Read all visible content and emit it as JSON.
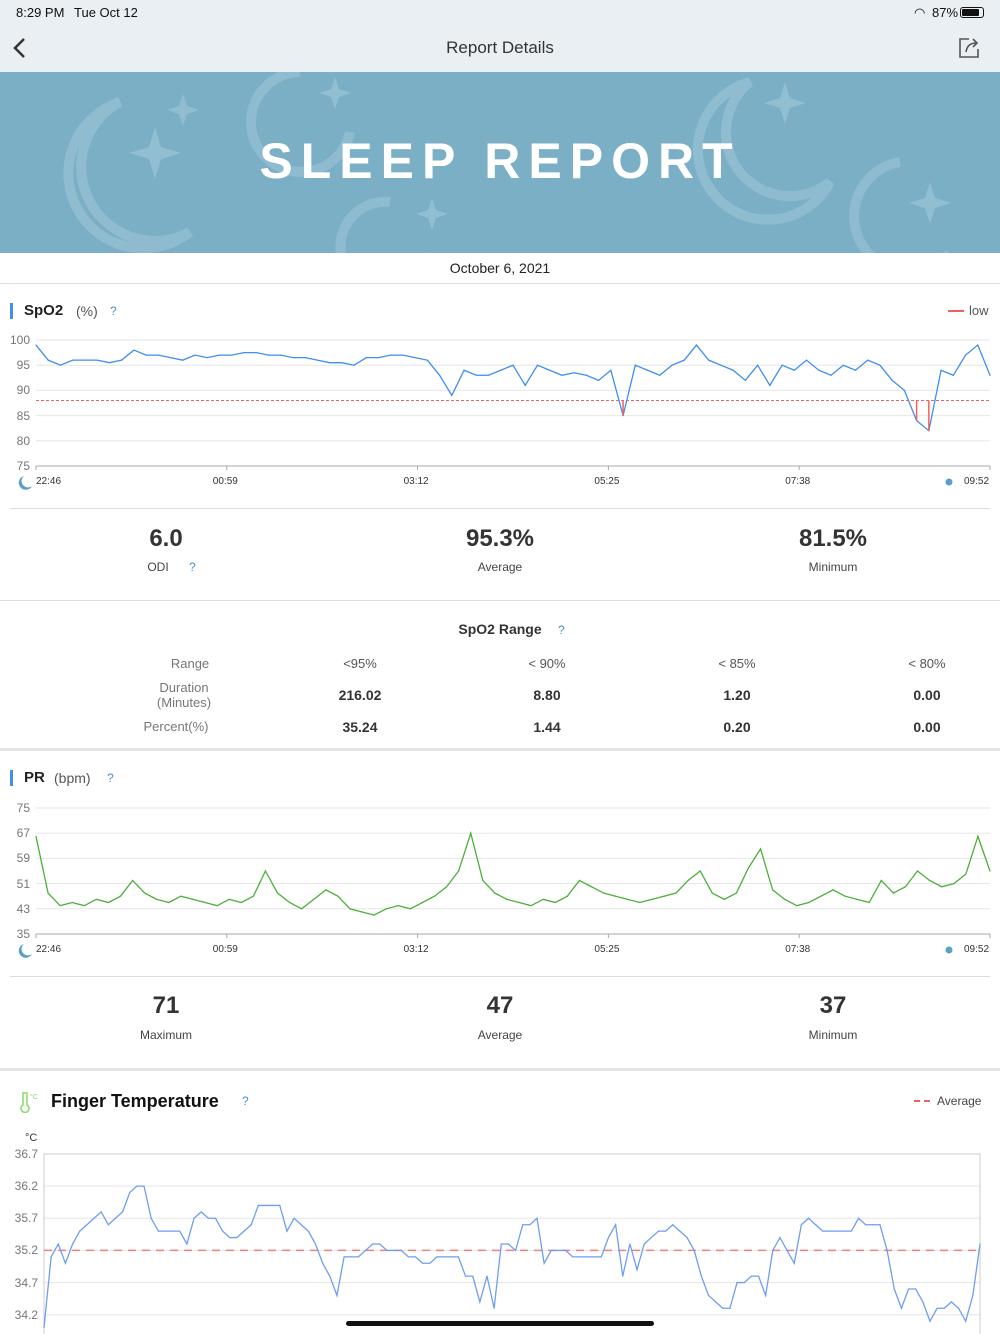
{
  "status_bar": {
    "time": "8:29 PM",
    "date": "Tue Oct 12",
    "battery": "87%"
  },
  "nav": {
    "title": "Report Details",
    "back_icon": "chevron-left-icon",
    "share_icon": "share-icon"
  },
  "banner": {
    "title": "SLEEP REPORT"
  },
  "report_date": "October 6, 2021",
  "spo2": {
    "title": "SpO2",
    "unit": "(%)",
    "help": "?",
    "legend": "low",
    "stats": [
      {
        "value": "6.0",
        "label": "ODI",
        "help": "?"
      },
      {
        "value": "95.3%",
        "label": "Average"
      },
      {
        "value": "81.5%",
        "label": "Minimum"
      }
    ]
  },
  "spo2_range": {
    "title": "SpO2 Range",
    "help": "?",
    "header": [
      "Range",
      "<95%",
      "< 90%",
      "< 85%",
      "< 80%"
    ],
    "rows": [
      {
        "label": "Duration\n(Minutes)",
        "values": [
          "216.02",
          "8.80",
          "1.20",
          "0.00"
        ]
      },
      {
        "label": "Percent(%)",
        "values": [
          "35.24",
          "1.44",
          "0.20",
          "0.00"
        ]
      }
    ]
  },
  "pr": {
    "title": "PR",
    "unit": "(bpm)",
    "help": "?",
    "stats": [
      {
        "value": "71",
        "label": "Maximum"
      },
      {
        "value": "47",
        "label": "Average"
      },
      {
        "value": "37",
        "label": "Minimum"
      }
    ]
  },
  "temp": {
    "title": "Finger Temperature",
    "help": "?",
    "legend": "Average",
    "unit": "°C"
  },
  "colors": {
    "spo2": "#3f8ef0",
    "low": "#f06060",
    "pr": "#4caf3a",
    "temp": "#6f9ef0",
    "avg": "#f08080"
  },
  "chart_data": [
    {
      "type": "line",
      "title": "SpO2 (%)",
      "x_ticks": [
        "22:46",
        "00:59",
        "03:12",
        "05:25",
        "07:38",
        "09:52"
      ],
      "y_ticks": [
        100,
        95,
        90,
        85,
        80,
        75
      ],
      "ylim": [
        75,
        100
      ],
      "low_threshold": 88,
      "values": [
        99,
        96,
        95,
        96,
        96,
        96,
        95.5,
        96,
        98,
        97,
        97,
        96.5,
        96,
        97,
        96.5,
        97,
        97,
        97.5,
        97.5,
        97,
        97,
        96.5,
        96.5,
        96,
        95.5,
        95.5,
        95,
        96.5,
        96.5,
        97,
        97,
        96.5,
        96,
        93,
        89,
        94,
        93,
        93,
        94,
        95,
        91,
        95,
        94,
        93,
        93.5,
        93,
        92,
        94,
        85,
        95,
        94,
        93,
        95,
        96,
        99,
        96,
        95,
        94,
        92,
        95,
        91,
        95,
        94,
        96,
        94,
        93,
        95,
        94,
        96,
        95,
        92,
        90,
        84,
        82,
        94,
        93,
        97,
        99,
        93
      ]
    },
    {
      "type": "line",
      "title": "PR (bpm)",
      "x_ticks": [
        "22:46",
        "00:59",
        "03:12",
        "05:25",
        "07:38",
        "09:52"
      ],
      "y_ticks": [
        75,
        67,
        59,
        51,
        43,
        35
      ],
      "ylim": [
        35,
        75
      ],
      "values": [
        66,
        48,
        44,
        45,
        44,
        46,
        45,
        47,
        52,
        48,
        46,
        45,
        47,
        46,
        45,
        44,
        46,
        45,
        47,
        55,
        48,
        45,
        43,
        46,
        49,
        47,
        43,
        42,
        41,
        43,
        44,
        43,
        45,
        47,
        50,
        55,
        67,
        52,
        48,
        46,
        45,
        44,
        46,
        45,
        47,
        52,
        50,
        48,
        47,
        46,
        45,
        46,
        47,
        48,
        52,
        55,
        48,
        46,
        48,
        56,
        62,
        49,
        46,
        44,
        45,
        47,
        49,
        47,
        46,
        45,
        52,
        48,
        50,
        55,
        52,
        50,
        51,
        54,
        66,
        55
      ]
    },
    {
      "type": "line",
      "title": "Finger Temperature",
      "ylabel": "°C",
      "y_ticks": [
        36.7,
        36.2,
        35.7,
        35.2,
        34.7,
        34.2
      ],
      "ylim": [
        33.9,
        36.7
      ],
      "average": 35.2,
      "values": [
        34.0,
        35.1,
        35.3,
        35.0,
        35.3,
        35.5,
        35.6,
        35.7,
        35.8,
        35.6,
        35.7,
        35.8,
        36.1,
        36.2,
        36.2,
        35.7,
        35.5,
        35.5,
        35.5,
        35.5,
        35.3,
        35.7,
        35.8,
        35.7,
        35.7,
        35.5,
        35.4,
        35.4,
        35.5,
        35.6,
        35.9,
        35.9,
        35.9,
        35.9,
        35.5,
        35.7,
        35.6,
        35.5,
        35.3,
        35.0,
        34.8,
        34.5,
        35.1,
        35.1,
        35.1,
        35.2,
        35.3,
        35.3,
        35.2,
        35.2,
        35.2,
        35.1,
        35.1,
        35.0,
        35.0,
        35.1,
        35.1,
        35.1,
        35.1,
        34.8,
        34.8,
        34.4,
        34.8,
        34.3,
        35.3,
        35.3,
        35.2,
        35.6,
        35.6,
        35.7,
        35.0,
        35.2,
        35.2,
        35.2,
        35.1,
        35.1,
        35.1,
        35.1,
        35.1,
        35.4,
        35.6,
        34.8,
        35.3,
        34.9,
        35.3,
        35.4,
        35.5,
        35.5,
        35.6,
        35.5,
        35.4,
        35.2,
        34.8,
        34.5,
        34.4,
        34.3,
        34.3,
        34.7,
        34.7,
        34.8,
        34.8,
        34.5,
        35.2,
        35.4,
        35.2,
        35.0,
        35.6,
        35.7,
        35.6,
        35.5,
        35.5,
        35.5,
        35.5,
        35.5,
        35.7,
        35.6,
        35.6,
        35.6,
        35.2,
        34.6,
        34.3,
        34.6,
        34.6,
        34.4,
        34.1,
        34.3,
        34.3,
        34.4,
        34.3,
        34.1,
        34.5,
        35.3
      ]
    }
  ]
}
